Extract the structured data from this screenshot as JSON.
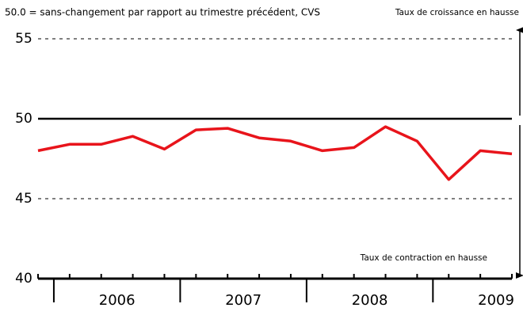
{
  "chart_data": {
    "type": "line",
    "subtitle": "50.0 = sans-changement par rapport au trimestre précédent, CVS",
    "annotations": [
      "Taux de croissance en hausse",
      "Taux de contraction en hausse"
    ],
    "categories": [
      null,
      "2006",
      "2006",
      "2006",
      "2006",
      "2007",
      "2007",
      "2007",
      "2007",
      "2008",
      "2008",
      "2008",
      "2008",
      "2009",
      "2009",
      "2009"
    ],
    "series": [
      {
        "color": "#e8141b",
        "values": [
          48.0,
          48.4,
          48.4,
          48.9,
          48.1,
          49.3,
          49.4,
          48.8,
          48.6,
          48.0,
          48.2,
          49.5,
          48.6,
          46.2,
          48.0,
          47.8
        ]
      }
    ],
    "ylim": [
      40,
      56
    ],
    "yticks": [
      40,
      45,
      50,
      55
    ],
    "reference_line": 50,
    "grid": true
  }
}
